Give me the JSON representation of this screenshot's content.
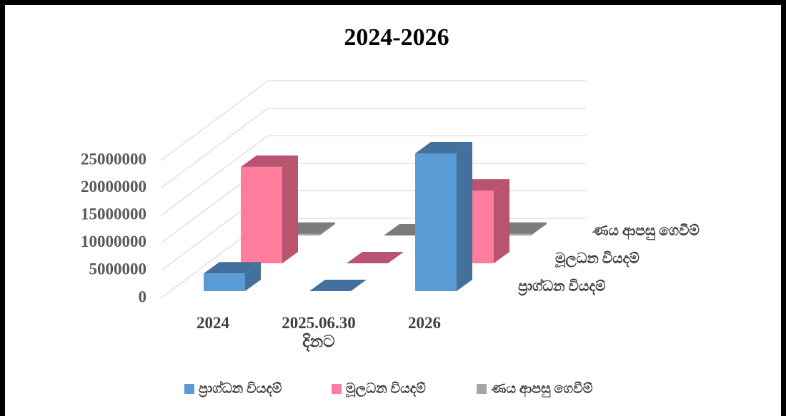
{
  "chart_data": {
    "type": "bar3d",
    "title": "2024-2026",
    "categories": [
      "2024",
      "2025.06.30 දිනට",
      "2026"
    ],
    "series": [
      {
        "name": "ප්‍රාග්ධන වියදම්",
        "color": "#5b9bd5",
        "side": "#41719c",
        "values": [
          3200000,
          0,
          25000000
        ]
      },
      {
        "name": "මූලධන වියදම්",
        "color": "#ff7c9c",
        "side": "#b85470",
        "values": [
          17500000,
          0,
          13200000
        ]
      },
      {
        "name": "ණය ආපසු ගෙවීම්",
        "color": "#a5a5a5",
        "side": "#7b7b7b",
        "values": [
          300000,
          0,
          300000
        ]
      }
    ],
    "ylim": [
      0,
      25000000
    ],
    "yticks": [
      0,
      5000000,
      10000000,
      15000000,
      20000000,
      25000000
    ],
    "grid": true
  }
}
